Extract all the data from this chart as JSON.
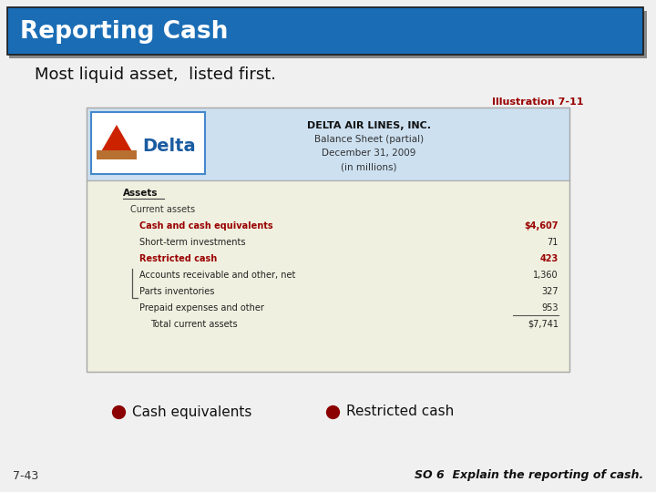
{
  "title": "Reporting Cash",
  "title_bg": "#1a6db5",
  "title_color": "#ffffff",
  "subtitle": "Most liquid asset,  listed first.",
  "illustration_label": "Illustration 7-11",
  "illustration_color": "#990000",
  "company_name": "DELTA AIR LINES, INC.",
  "balance_sheet_line1": "Balance Sheet (partial)",
  "balance_sheet_line2": "December 31, 2009",
  "balance_sheet_line3": "(in millions)",
  "assets_header": "Assets",
  "current_assets_label": "Current assets",
  "table_rows": [
    {
      "label": "Cash and cash equivalents",
      "value": "$4,607",
      "highlight": "red",
      "indent": 2
    },
    {
      "label": "Short-term investments",
      "value": "71",
      "highlight": "none",
      "indent": 2
    },
    {
      "label": "Restricted cash",
      "value": "423",
      "highlight": "red",
      "indent": 2
    },
    {
      "label": "Accounts receivable and other, net",
      "value": "1,360",
      "highlight": "none",
      "indent": 2
    },
    {
      "label": "Parts inventories",
      "value": "327",
      "highlight": "none",
      "indent": 2
    },
    {
      "label": "Prepaid expenses and other",
      "value": "953",
      "highlight": "none",
      "indent": 2
    },
    {
      "label": "Total current assets",
      "value": "$7,741",
      "highlight": "none",
      "indent": 3
    }
  ],
  "legend_items": [
    "Cash equivalents",
    "Restricted cash"
  ],
  "legend_color": "#8b0000",
  "bottom_left": "7-43",
  "bottom_right": "SO 6  Explain the reporting of cash.",
  "slide_bg": "#f0f0f0",
  "table_header_bg": "#cce0f0",
  "table_body_bg": "#f0f0e0",
  "delta_border": "#4488cc",
  "delta_triangle_top": "#cc2200",
  "delta_triangle_base": "#b87030",
  "delta_text": "#1a5ca0"
}
